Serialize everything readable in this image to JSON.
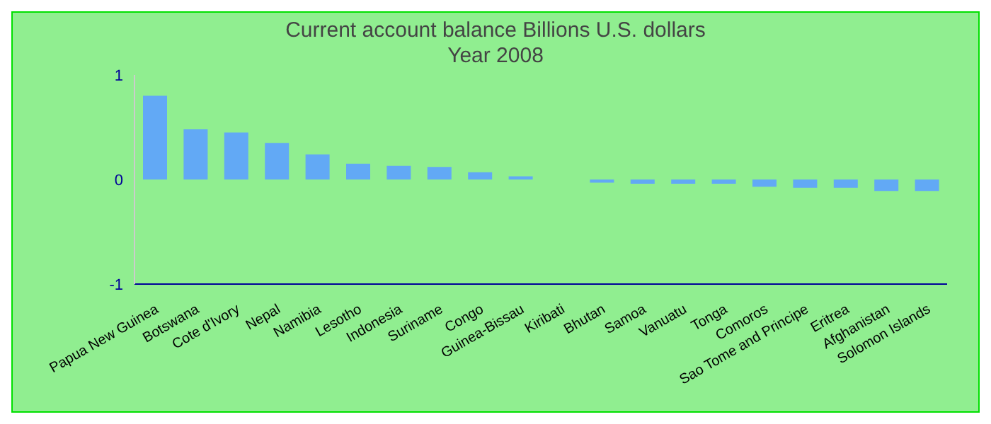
{
  "chart_data": {
    "type": "bar",
    "title": "Current account balance Billions U.S. dollars",
    "subtitle": "Year 2008",
    "categories": [
      "Papua New Guinea",
      "Botswana",
      "Cote d'Ivory",
      "Nepal",
      "Namibia",
      "Lesotho",
      "Indonesia",
      "Suriname",
      "Congo",
      "Guinea-Bissau",
      "Kiribati",
      "Bhutan",
      "Samoa",
      "Vanuatu",
      "Tonga",
      "Comoros",
      "Sao Tome and Principe",
      "Eritrea",
      "Afghanistan",
      "Solomon Islands"
    ],
    "values": [
      0.8,
      0.48,
      0.45,
      0.35,
      0.24,
      0.15,
      0.13,
      0.12,
      0.07,
      0.03,
      0.0,
      -0.03,
      -0.04,
      -0.04,
      -0.04,
      -0.07,
      -0.08,
      -0.08,
      -0.11,
      -0.11
    ],
    "color": "#62a9f5",
    "ylim": [
      -1,
      1
    ],
    "yticks": [
      -1,
      0,
      1
    ],
    "grid": false,
    "legend": false
  }
}
